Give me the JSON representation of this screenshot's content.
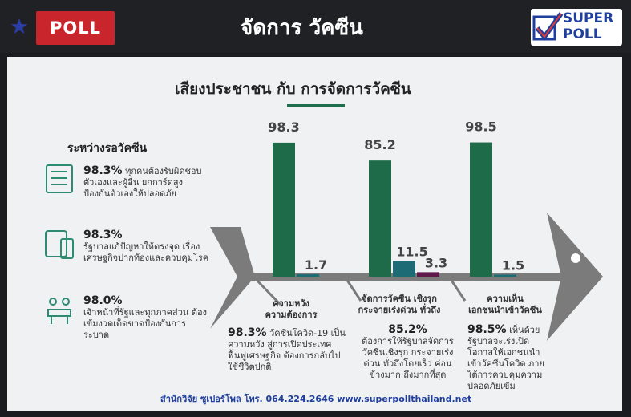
{
  "header": {
    "poll_label": "POLL",
    "title": "จัดการ วัคซีน",
    "logo_line1": "SUPER",
    "logo_line2": "POLL"
  },
  "colors": {
    "green": "#1e6b49",
    "teal": "#1d6b74",
    "purple": "#5e1a4a",
    "arrow": "#7b7b7b"
  },
  "left": {
    "header": "ระหว่างรอวัคซีน",
    "items": [
      {
        "pct": "98.3%",
        "text": "ทุกคนต้องรับผิดชอบตัวเองและผู้อื่น ยกการ์ดสูง ป้องกันตัวเองให้ปลอดภัย",
        "icon": "checklist-icon"
      },
      {
        "pct": "98.3%",
        "text": "รัฐบาลแก้ปัญหาให้ตรงจุด เรื่องเศรษฐกิจปากท้องและควบคุมโรค",
        "icon": "devices-icon"
      },
      {
        "pct": "98.0%",
        "text": "เจ้าหน้าที่รัฐและทุกภาคส่วน ต้องเข้มงวดเด็ดขาดป้องกันการระบาด",
        "icon": "meeting-icon"
      }
    ]
  },
  "chart_data": {
    "type": "bar",
    "title": "เสียงประชาชน กับ การจัดการวัคซีน",
    "groups": [
      {
        "label": "ความหวัง\nความต้องการ",
        "values": [
          98.3,
          1.7
        ]
      },
      {
        "label": "จัดการวัคซีน เชิงรุก\nกระจายเร่งด่วน ทั่วถึง",
        "values": [
          85.2,
          11.5,
          3.3
        ]
      },
      {
        "label": "ความเห็น\nเอกชนนำเข้าวัคซีน",
        "values": [
          98.5,
          1.5
        ]
      }
    ],
    "value_labels": [
      [
        "98.3",
        "1.7"
      ],
      [
        "85.2",
        "11.5",
        "3.3"
      ],
      [
        "98.5",
        "1.5"
      ]
    ],
    "ylim": [
      0,
      100
    ]
  },
  "descriptions": [
    {
      "pct": "98.3%",
      "text": "วัคซีนโควิด-19 เป็นความหวัง สู่การเปิดประเทศ ฟื้นฟูเศรษฐกิจ ต้องการกลับไปใช้ชีวิตปกติ"
    },
    {
      "pct": "85.2%",
      "text": "ต้องการให้รัฐบาลจัดการวัคซีนเชิงรุก กระจายเร่งด่วน ทั่วถึงโดยเร็ว ค่อนข้างมาก ถึงมากที่สุด"
    },
    {
      "pct": "98.5%",
      "text": "เห็นด้วย รัฐบาลจะเร่งเปิดโอกาสให้เอกชนนำเข้าวัคซีนโควิด ภายใต้การควบคุมความปลอดภัยเข้ม"
    }
  ],
  "footer": "สำนักวิจัย ซูเปอร์โพล โทร. 064.224.2646 www.superpollthailand.net"
}
